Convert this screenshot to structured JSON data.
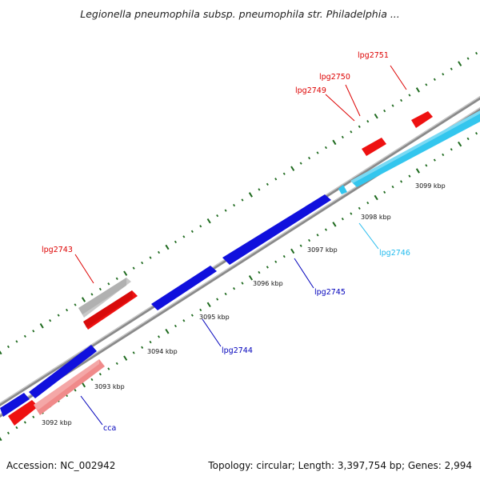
{
  "title": "Legionella pneumophila subsp. pneumophila str. Philadelphia ...",
  "footer": {
    "accession": "Accession: NC_002942",
    "summary": "Topology: circular; Length: 3,397,754 bp; Genes: 2,994"
  },
  "colors": {
    "forward_cds": "#ee1111",
    "reverse_cds": "#1010dd",
    "rna": "#33c6ee",
    "pseudo_forward": "#c8c8c8",
    "pseudo_reverse": "#f08a8a",
    "backbone": "#8a8a8a",
    "tick": "#1e6a1e",
    "forward_label": "#dd0000",
    "reverse_label": "#0000bb",
    "rna_label": "#22bbee"
  },
  "scale_labels": [
    "3092 kbp",
    "3093 kbp",
    "3094 kbp",
    "3095 kbp",
    "3096 kbp",
    "3097 kbp",
    "3098 kbp",
    "3099 kbp"
  ],
  "gene_labels": [
    {
      "text": "lpg2751",
      "strand": "forward"
    },
    {
      "text": "lpg2750",
      "strand": "forward"
    },
    {
      "text": "lpg2749",
      "strand": "forward"
    },
    {
      "text": "lpg2743",
      "strand": "forward"
    },
    {
      "text": "lpg2746",
      "strand": "rna"
    },
    {
      "text": "lpg2745",
      "strand": "reverse"
    },
    {
      "text": "lpg2744",
      "strand": "reverse"
    },
    {
      "text": "cca",
      "strand": "reverse"
    }
  ]
}
